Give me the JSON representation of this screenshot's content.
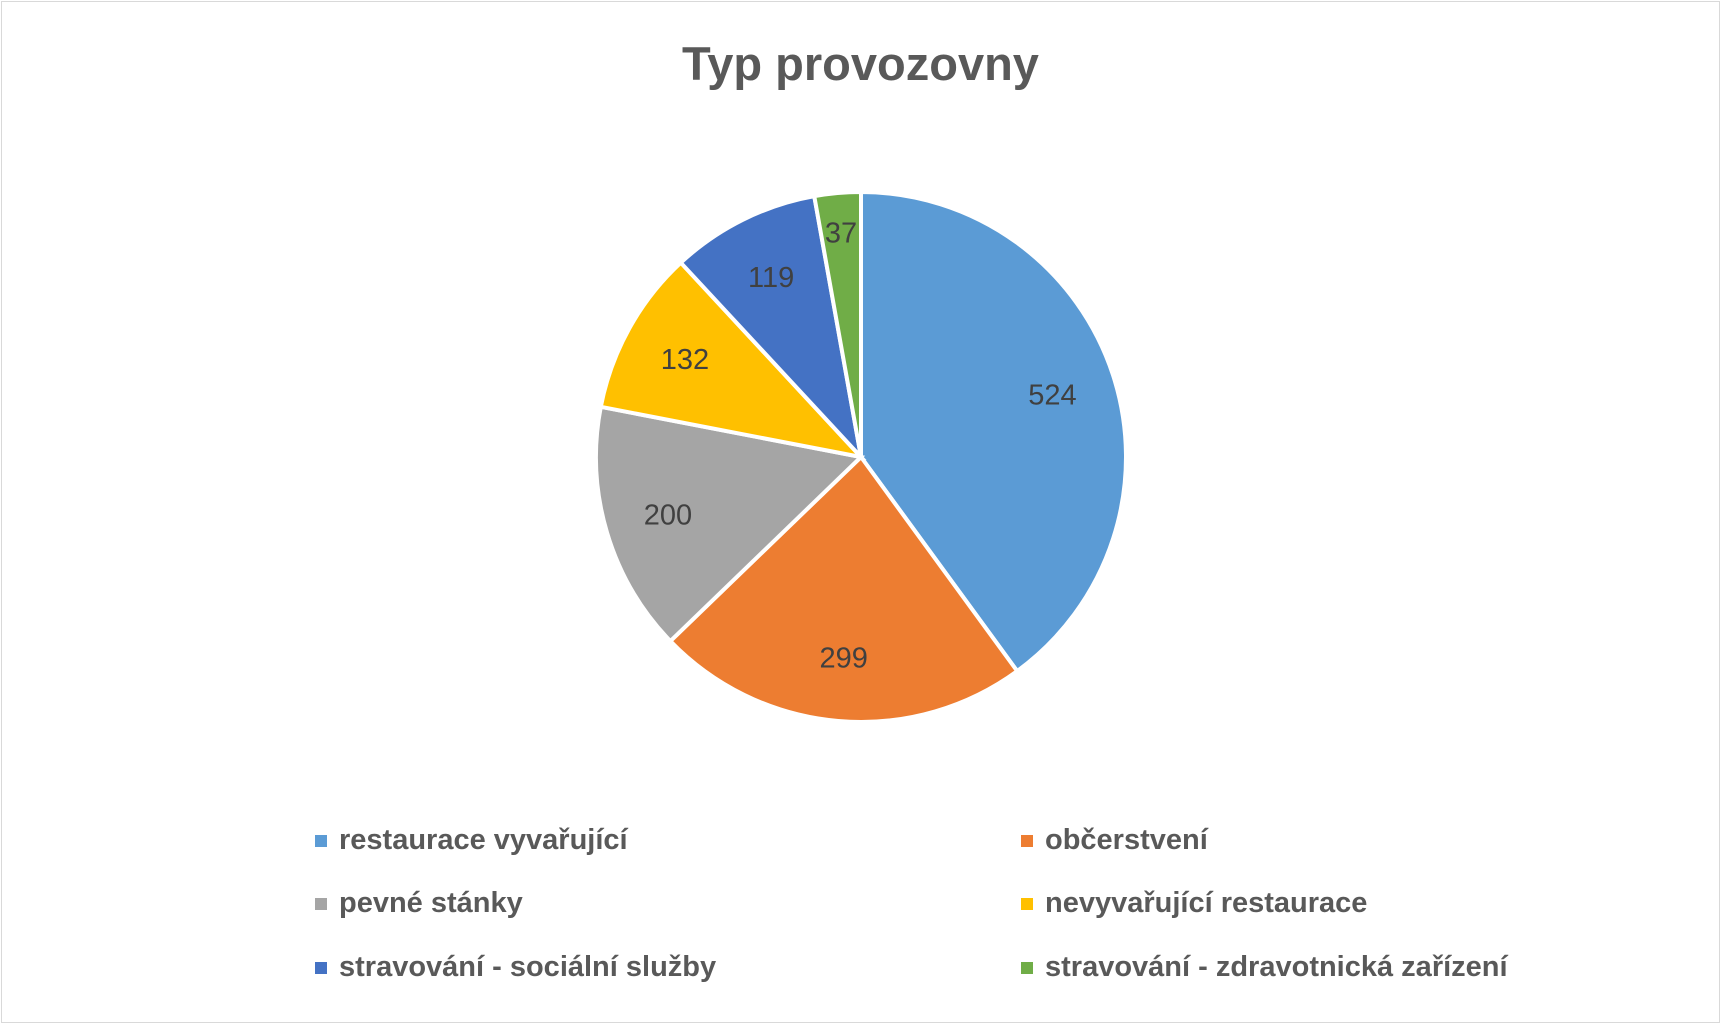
{
  "chart_data": {
    "type": "pie",
    "title": "Typ provozovny",
    "categories": [
      "restaurace vyvařující",
      "občerstvení",
      "pevné stánky",
      "nevyvařující restaurace",
      "stravování - sociální služby",
      "stravování - zdravotnická zařízení"
    ],
    "values": [
      524,
      299,
      200,
      132,
      119,
      37
    ],
    "colors": [
      "#5b9bd5",
      "#ed7d31",
      "#a5a5a5",
      "#ffc000",
      "#4472c4",
      "#70ad47"
    ],
    "data_labels": [
      "524",
      "299",
      "200",
      "132",
      "119",
      "37"
    ],
    "legend_position": "bottom"
  }
}
